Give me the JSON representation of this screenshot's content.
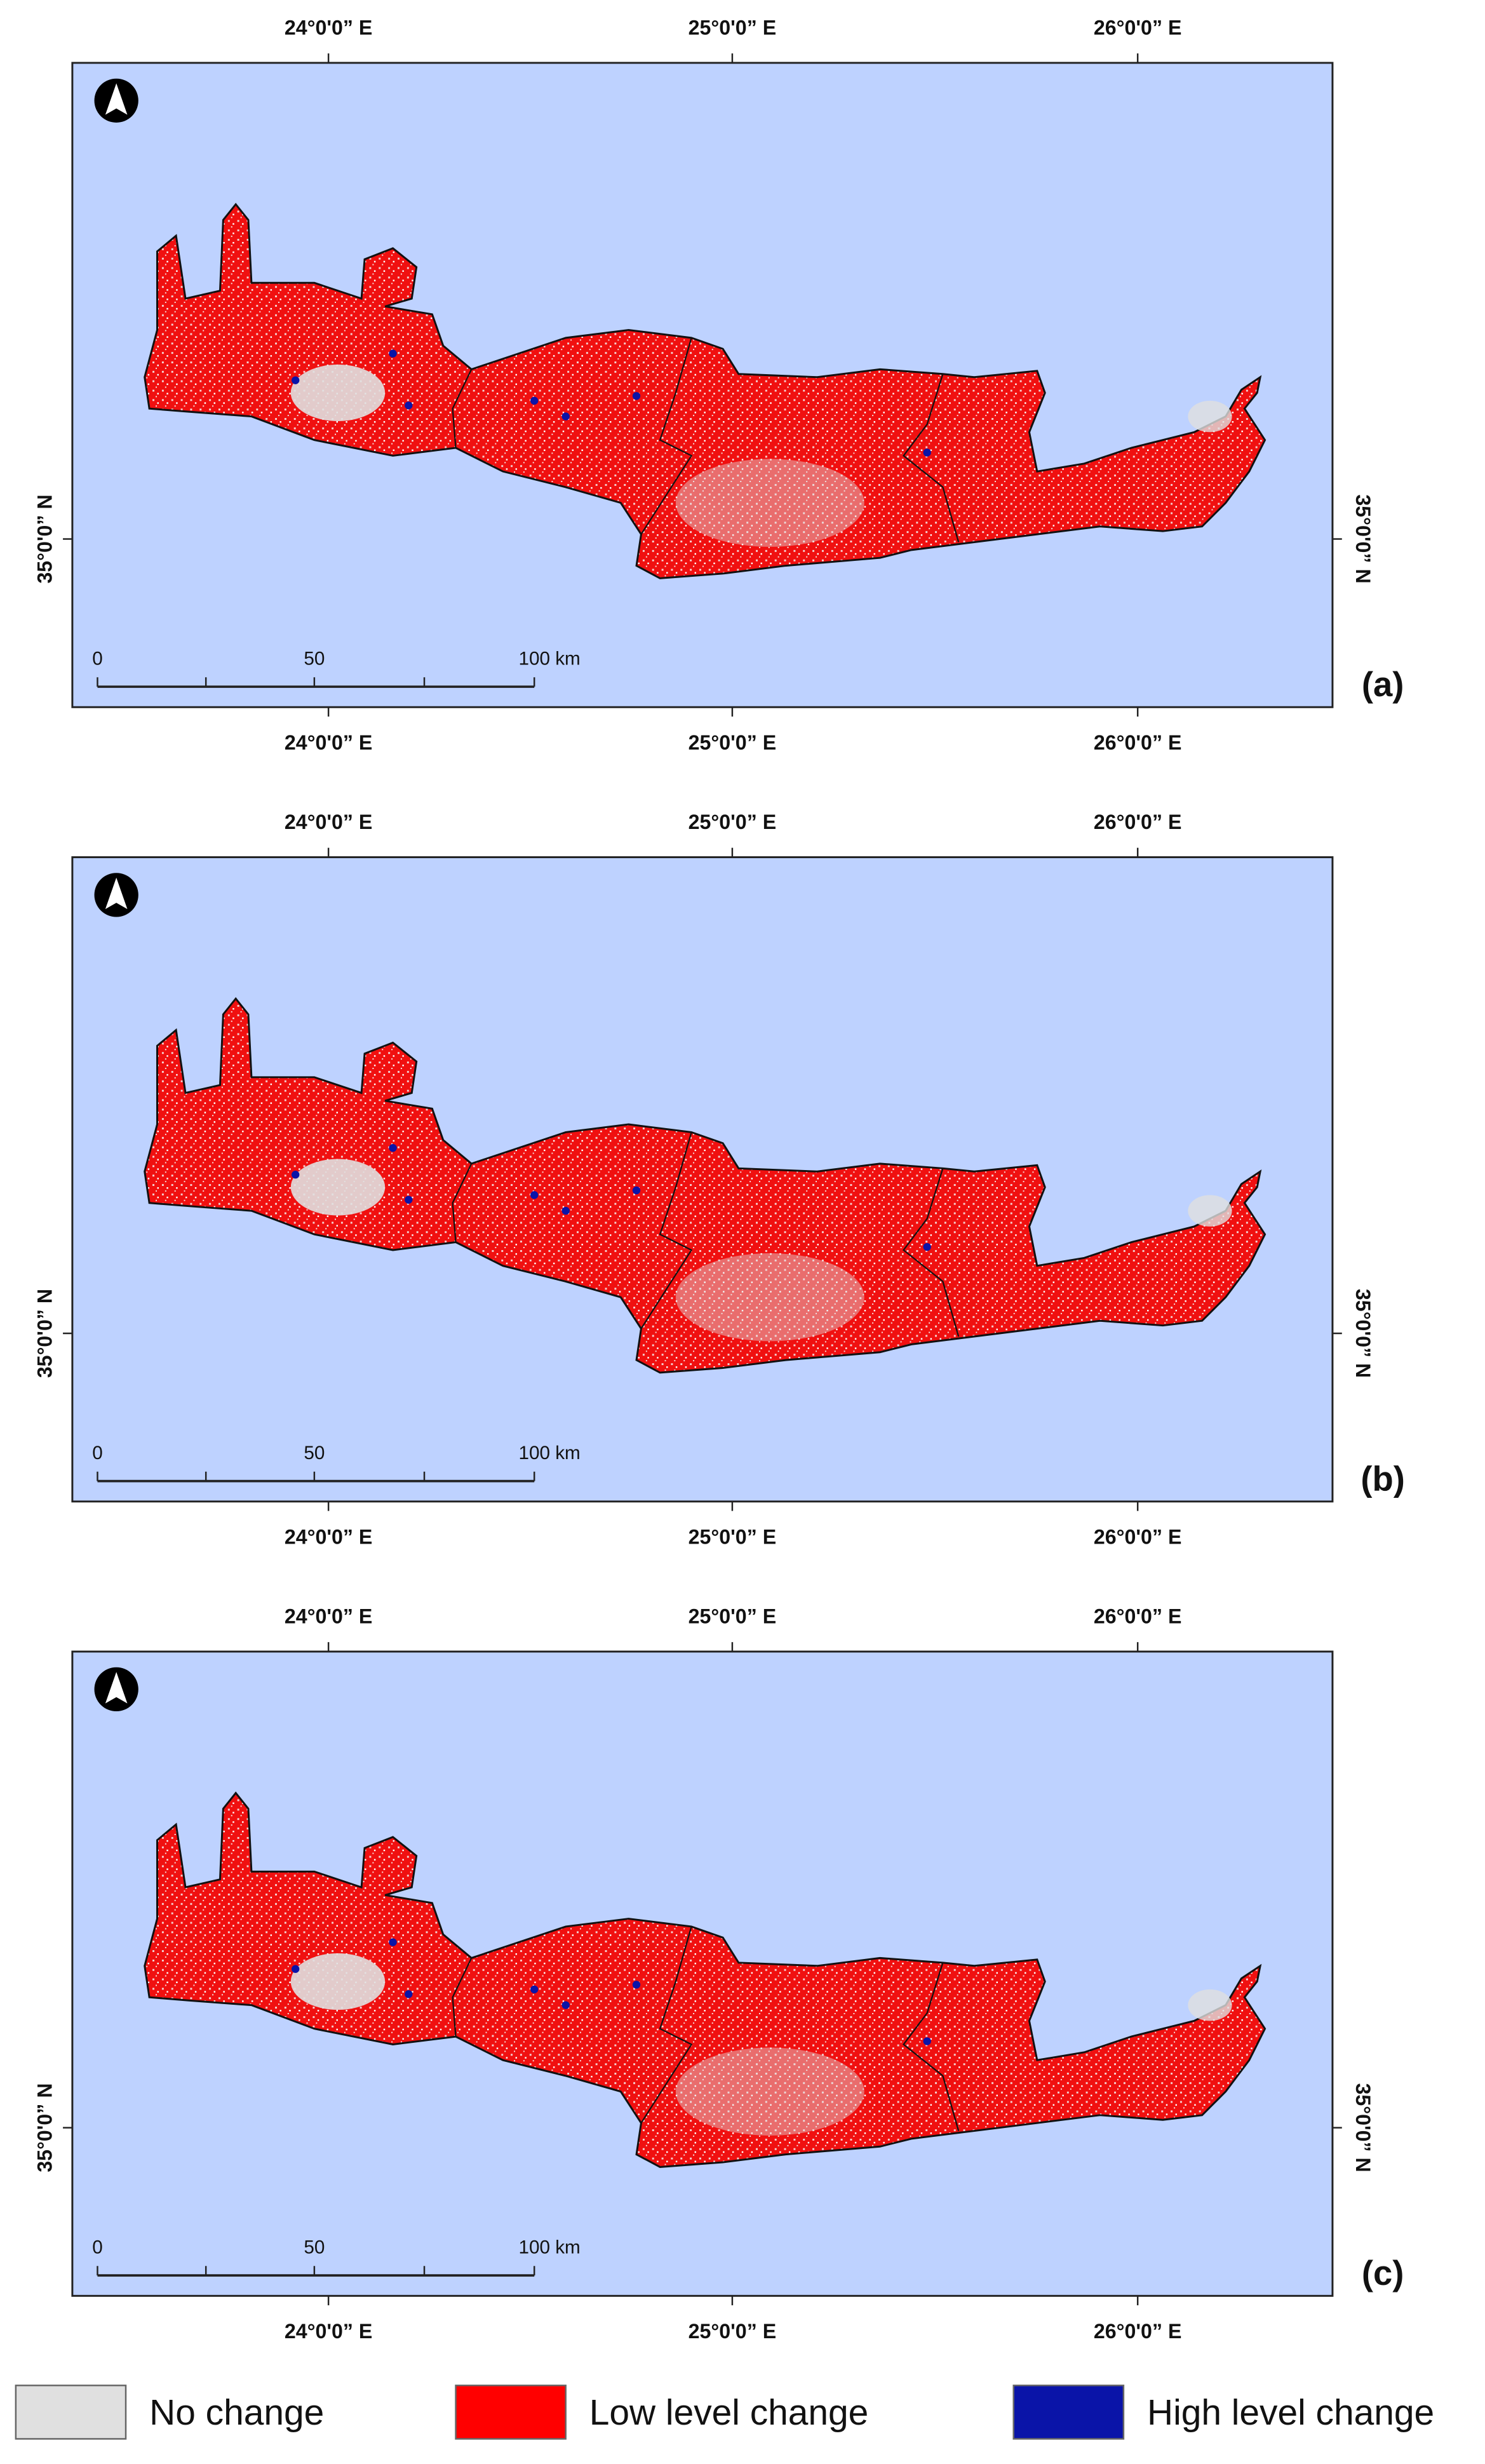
{
  "panels": [
    {
      "label": "(a)",
      "top_ticks": [
        "24°0'0” E",
        "25°0'0” E",
        "26°0'0” E"
      ],
      "bottom_ticks": [
        "24°0'0” E",
        "25°0'0” E",
        "26°0'0” E"
      ],
      "left_tick": "35°0'0” N",
      "right_tick": "35°0'0” N",
      "scale_bar": [
        "0",
        "50",
        "100 km"
      ]
    },
    {
      "label": "(b)",
      "top_ticks": [
        "24°0'0” E",
        "25°0'0” E",
        "26°0'0” E"
      ],
      "bottom_ticks": [
        "24°0'0” E",
        "25°0'0” E",
        "26°0'0” E"
      ],
      "left_tick": "35°0'0” N",
      "right_tick": "35°0'0” N",
      "scale_bar": [
        "0",
        "50",
        "100 km"
      ]
    },
    {
      "label": "(c)",
      "top_ticks": [
        "24°0'0” E",
        "25°0'0” E",
        "26°0'0” E"
      ],
      "bottom_ticks": [
        "24°0'0” E",
        "25°0'0” E",
        "26°0'0” E"
      ],
      "left_tick": "35°0'0” N",
      "right_tick": "35°0'0” N",
      "scale_bar": [
        "0",
        "50",
        "100 km"
      ]
    }
  ],
  "legend": [
    {
      "label": "No change",
      "color": "#e0e0e0"
    },
    {
      "label": "Low level change",
      "color": "#ff0000"
    },
    {
      "label": "High level change",
      "color": "#0a14a8"
    }
  ]
}
